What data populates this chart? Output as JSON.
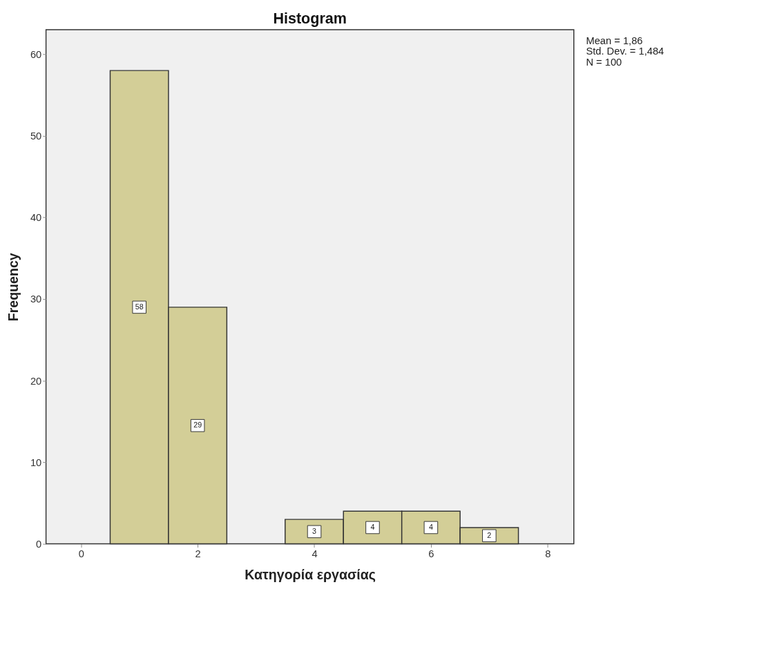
{
  "chart_data": {
    "type": "histogram",
    "title": "Histogram",
    "xlabel": "Κατηγορία εργασίας",
    "ylabel": "Frequency",
    "bins": [
      0.5,
      1.5,
      2.5,
      3.5,
      4.5,
      5.5,
      6.5,
      7.5
    ],
    "values": [
      58,
      29,
      0,
      3,
      4,
      4,
      2
    ],
    "value_labels": [
      "58",
      "29",
      null,
      "3",
      "4",
      "4",
      "2"
    ],
    "color": "#d3ce97",
    "xlim": [
      -0.6,
      8.45
    ],
    "xticks": [
      0,
      2,
      4,
      6,
      8
    ],
    "ylim": [
      0,
      63
    ],
    "yticks": [
      0,
      10,
      20,
      30,
      40,
      50,
      60
    ],
    "grid": false,
    "annotations": [
      "Mean = 1,86",
      "Std. Dev. = 1,484",
      "N = 100"
    ]
  }
}
